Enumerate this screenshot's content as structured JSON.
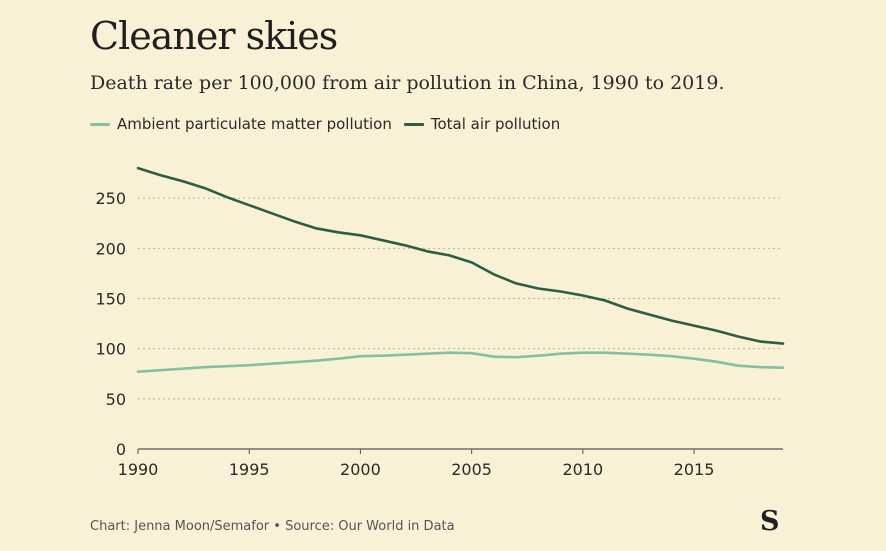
{
  "chart_data": {
    "type": "line",
    "title": "Cleaner skies",
    "subtitle": "Death rate per 100,000 from air pollution in China, 1990 to 2019.",
    "xlabel": "",
    "ylabel": "",
    "xlim": [
      1990,
      2019
    ],
    "ylim": [
      0,
      280
    ],
    "x_ticks": [
      1990,
      1995,
      2000,
      2005,
      2010,
      2015
    ],
    "y_ticks": [
      0,
      50,
      100,
      150,
      200,
      250
    ],
    "grid": "horizontal-dotted",
    "legend_position": "top-left",
    "x": [
      1990,
      1991,
      1992,
      1993,
      1994,
      1995,
      1996,
      1997,
      1998,
      1999,
      2000,
      2001,
      2002,
      2003,
      2004,
      2005,
      2006,
      2007,
      2008,
      2009,
      2010,
      2011,
      2012,
      2013,
      2014,
      2015,
      2016,
      2017,
      2018,
      2019
    ],
    "series": [
      {
        "name": "Ambient particulate matter pollution",
        "color": "#86bf9e",
        "values": [
          77,
          78.5,
          80,
          81.5,
          82.5,
          83.5,
          85,
          86.5,
          88,
          90,
          92.5,
          93,
          94,
          95,
          96,
          95.5,
          92,
          91.5,
          93,
          95,
          96,
          96,
          95,
          94,
          92.5,
          90,
          87,
          83,
          81.5,
          81
        ]
      },
      {
        "name": "Total air pollution",
        "color": "#2d5e43",
        "values": [
          280,
          273,
          267,
          260,
          251,
          243,
          235,
          227,
          220,
          216,
          213,
          208,
          203,
          197,
          193,
          186,
          174,
          165,
          160,
          157,
          153,
          148,
          140,
          134,
          128,
          123,
          118,
          112,
          107,
          105
        ]
      }
    ]
  },
  "footer": {
    "credit": "Chart: Jenna Moon/Semafor • Source: Our World in Data",
    "logo": "S"
  }
}
